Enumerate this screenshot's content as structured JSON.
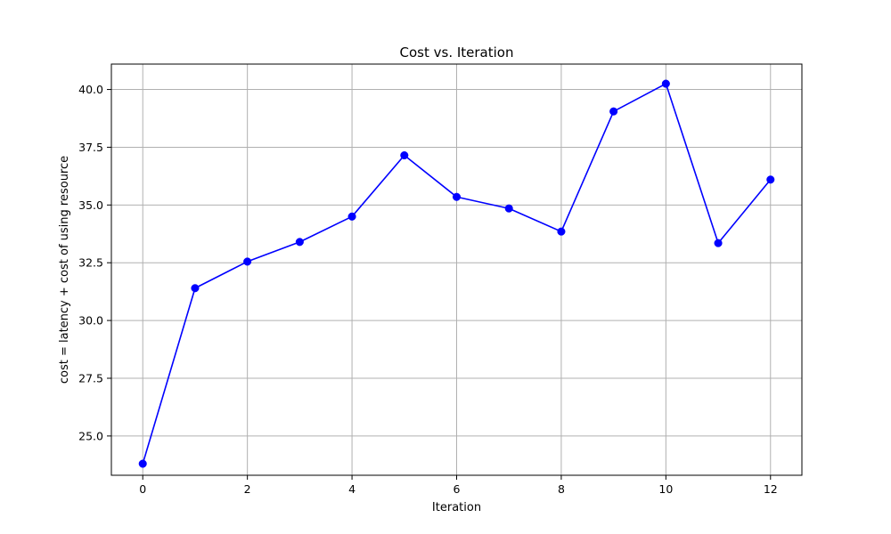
{
  "chart_data": {
    "type": "line",
    "title": "Cost vs. Iteration",
    "xlabel": "Iteration",
    "ylabel": "cost = latency + cost of using resource",
    "xlim": [
      -0.6,
      12.6
    ],
    "ylim": [
      23.3,
      41.1
    ],
    "xticks": [
      0,
      2,
      4,
      6,
      8,
      10,
      12
    ],
    "yticks": [
      25.0,
      27.5,
      30.0,
      32.5,
      35.0,
      37.5,
      40.0
    ],
    "xtick_labels": [
      "0",
      "2",
      "4",
      "6",
      "8",
      "10",
      "12"
    ],
    "ytick_labels": [
      "25.0",
      "27.5",
      "30.0",
      "32.5",
      "35.0",
      "37.5",
      "40.0"
    ],
    "grid": true,
    "series": [
      {
        "color": "#0000ff",
        "marker": "circle",
        "x": [
          0,
          1,
          2,
          3,
          4,
          5,
          6,
          7,
          8,
          9,
          10,
          11,
          12
        ],
        "y": [
          23.8,
          31.4,
          32.55,
          33.4,
          34.5,
          37.15,
          35.35,
          34.85,
          33.85,
          39.05,
          40.25,
          33.35,
          36.1
        ]
      }
    ]
  }
}
